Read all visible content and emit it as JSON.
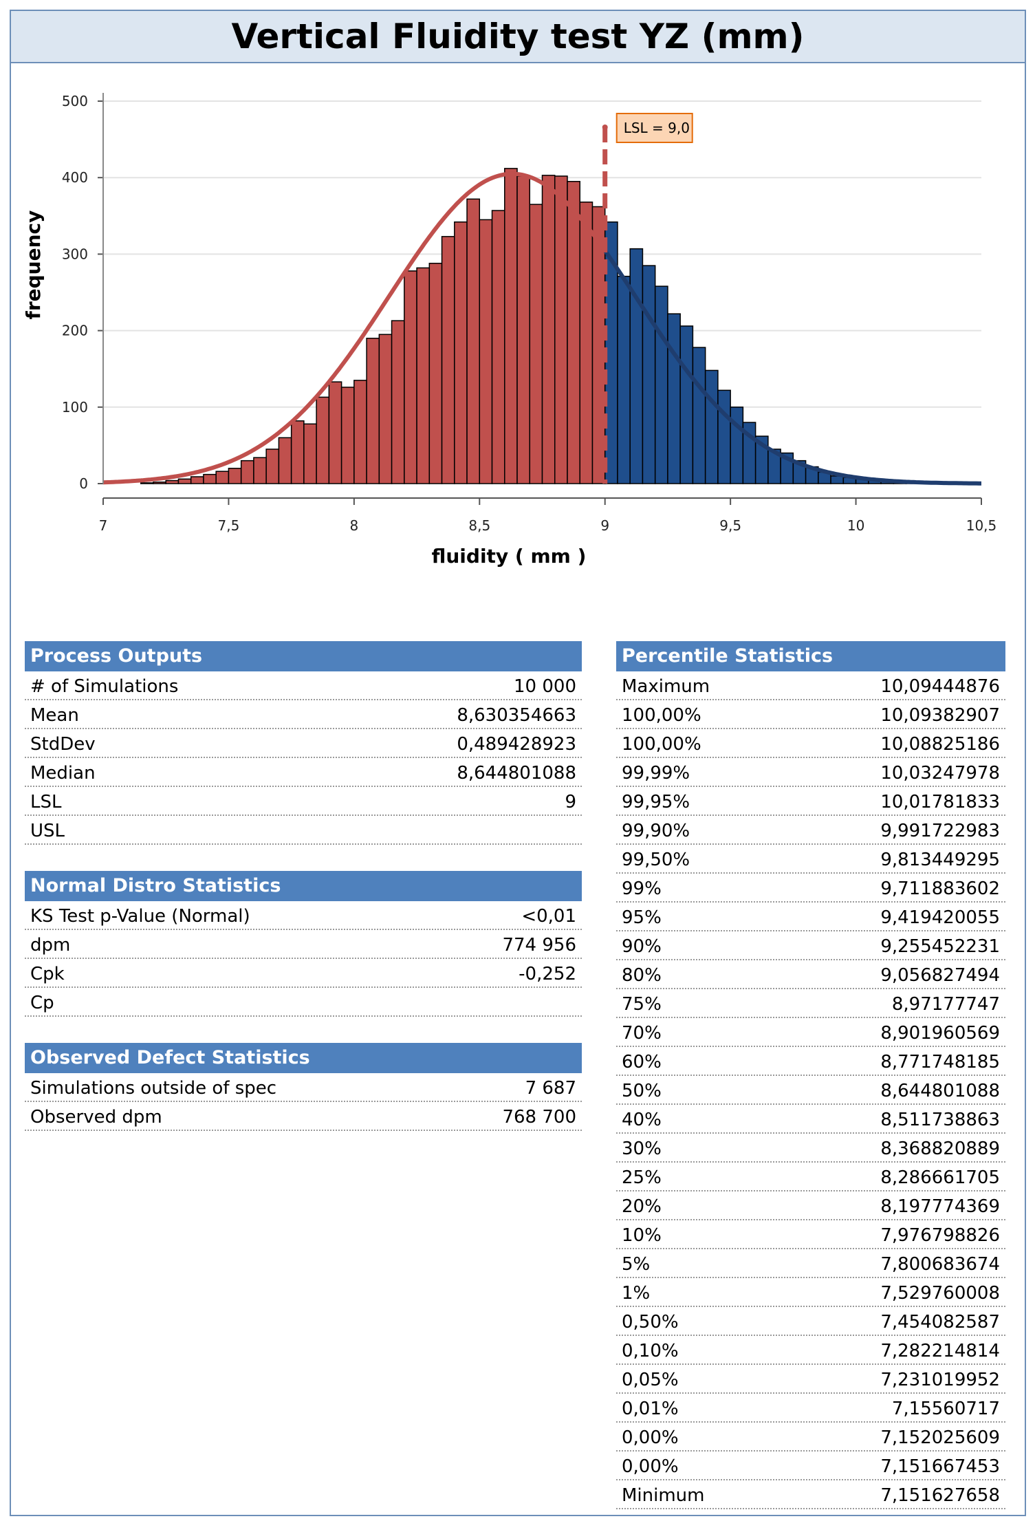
{
  "title": "Vertical Fluidity test YZ (mm)",
  "chart_data": {
    "type": "bar",
    "title": "Vertical Fluidity test YZ (mm)",
    "xlabel": "fluidity ( mm )",
    "ylabel": "frequency",
    "xlim": [
      7,
      10.5
    ],
    "ylim": [
      0,
      500
    ],
    "xticks": [
      "7",
      "7,5",
      "8",
      "8,5",
      "9",
      "9,5",
      "10",
      "10,5"
    ],
    "yticks": [
      "0",
      "100",
      "200",
      "300",
      "400",
      "500"
    ],
    "bin_width": 0.05,
    "bin_start": 7.15,
    "values": [
      1,
      2,
      4,
      6,
      9,
      12,
      16,
      20,
      30,
      34,
      45,
      60,
      82,
      78,
      113,
      133,
      126,
      135,
      190,
      195,
      213,
      278,
      282,
      288,
      323,
      342,
      372,
      345,
      357,
      412,
      402,
      365,
      403,
      402,
      395,
      368,
      362,
      342,
      271,
      307,
      285,
      258,
      222,
      206,
      178,
      148,
      122,
      100,
      80,
      62,
      45,
      40,
      30,
      22,
      15,
      10,
      8,
      6,
      4,
      3,
      2,
      1,
      1,
      0,
      0,
      0,
      0
    ],
    "below_lsl_color": "#c0504d",
    "above_lsl_color": "#1f4e8c",
    "normal_fit": {
      "mean": 8.630354663,
      "stddev": 0.489428923,
      "peak": 405
    },
    "lsl": {
      "value": 9.0,
      "label": "LSL = 9,0",
      "color": "#c0504d"
    }
  },
  "process_outputs": {
    "header": "Process Outputs",
    "rows": [
      {
        "label": "# of Simulations",
        "value": "10 000"
      },
      {
        "label": "Mean",
        "value": "8,630354663"
      },
      {
        "label": "StdDev",
        "value": "0,489428923"
      },
      {
        "label": "Median",
        "value": "8,644801088"
      },
      {
        "label": "LSL",
        "value": "9"
      },
      {
        "label": "USL",
        "value": ""
      }
    ]
  },
  "normal_distro": {
    "header": "Normal Distro Statistics",
    "rows": [
      {
        "label": "KS Test p-Value (Normal)",
        "value": "<0,01"
      },
      {
        "label": "dpm",
        "value": "774 956"
      },
      {
        "label": "Cpk",
        "value": "-0,252"
      },
      {
        "label": "Cp",
        "value": ""
      }
    ]
  },
  "observed_defect": {
    "header": "Observed Defect Statistics",
    "rows": [
      {
        "label": "Simulations outside of spec",
        "value": "7 687"
      },
      {
        "label": "Observed dpm",
        "value": "768 700"
      }
    ]
  },
  "percentile": {
    "header": "Percentile Statistics",
    "rows": [
      {
        "label": "Maximum",
        "value": "10,09444876"
      },
      {
        "label": "100,00%",
        "value": "10,09382907"
      },
      {
        "label": "100,00%",
        "value": "10,08825186"
      },
      {
        "label": "99,99%",
        "value": "10,03247978"
      },
      {
        "label": "99,95%",
        "value": "10,01781833"
      },
      {
        "label": "99,90%",
        "value": "9,991722983"
      },
      {
        "label": "99,50%",
        "value": "9,813449295"
      },
      {
        "label": "99%",
        "value": "9,711883602"
      },
      {
        "label": "95%",
        "value": "9,419420055"
      },
      {
        "label": "90%",
        "value": "9,255452231"
      },
      {
        "label": "80%",
        "value": "9,056827494"
      },
      {
        "label": "75%",
        "value": "8,97177747"
      },
      {
        "label": "70%",
        "value": "8,901960569"
      },
      {
        "label": "60%",
        "value": "8,771748185"
      },
      {
        "label": "50%",
        "value": "8,644801088"
      },
      {
        "label": "40%",
        "value": "8,511738863"
      },
      {
        "label": "30%",
        "value": "8,368820889"
      },
      {
        "label": "25%",
        "value": "8,286661705"
      },
      {
        "label": "20%",
        "value": "8,197774369"
      },
      {
        "label": "10%",
        "value": "7,976798826"
      },
      {
        "label": "5%",
        "value": "7,800683674"
      },
      {
        "label": "1%",
        "value": "7,529760008"
      },
      {
        "label": "0,50%",
        "value": "7,454082587"
      },
      {
        "label": "0,10%",
        "value": "7,282214814"
      },
      {
        "label": "0,05%",
        "value": "7,231019952"
      },
      {
        "label": "0,01%",
        "value": "7,15560717"
      },
      {
        "label": "0,00%",
        "value": "7,152025609"
      },
      {
        "label": "0,00%",
        "value": "7,151667453"
      },
      {
        "label": "Minimum",
        "value": "7,151627658"
      }
    ]
  }
}
